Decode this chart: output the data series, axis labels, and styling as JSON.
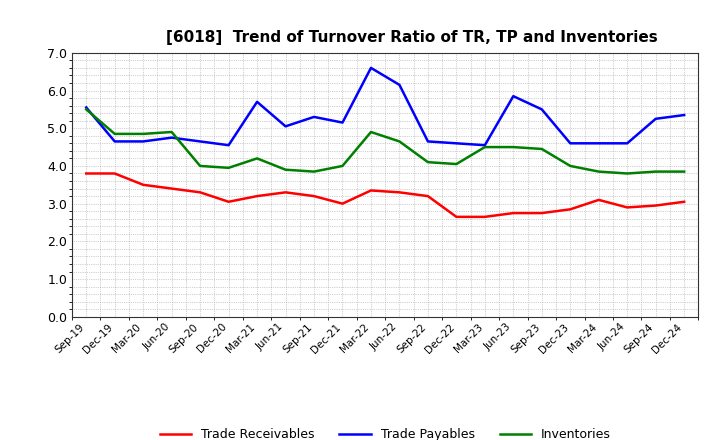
{
  "title": "[6018]  Trend of Turnover Ratio of TR, TP and Inventories",
  "x_labels": [
    "Sep-19",
    "Dec-19",
    "Mar-20",
    "Jun-20",
    "Sep-20",
    "Dec-20",
    "Mar-21",
    "Jun-21",
    "Sep-21",
    "Dec-21",
    "Mar-22",
    "Jun-22",
    "Sep-22",
    "Dec-22",
    "Mar-23",
    "Jun-23",
    "Sep-23",
    "Dec-23",
    "Mar-24",
    "Jun-24",
    "Sep-24",
    "Dec-24"
  ],
  "trade_receivables": [
    3.8,
    3.8,
    3.5,
    3.4,
    3.3,
    3.05,
    3.2,
    3.3,
    3.2,
    3.0,
    3.35,
    3.3,
    3.2,
    2.65,
    2.65,
    2.75,
    2.75,
    2.85,
    3.1,
    2.9,
    2.95,
    3.05
  ],
  "trade_payables": [
    5.55,
    4.65,
    4.65,
    4.75,
    4.65,
    4.55,
    5.7,
    5.05,
    5.3,
    5.15,
    6.6,
    6.15,
    4.65,
    4.6,
    4.55,
    5.85,
    5.5,
    4.6,
    4.6,
    4.6,
    5.25,
    5.35
  ],
  "inventories": [
    5.5,
    4.85,
    4.85,
    4.9,
    4.0,
    3.95,
    4.2,
    3.9,
    3.85,
    4.0,
    4.9,
    4.65,
    4.1,
    4.05,
    4.5,
    4.5,
    4.45,
    4.0,
    3.85,
    3.8,
    3.85,
    3.85
  ],
  "ylim": [
    0.0,
    7.0
  ],
  "yticks": [
    0.0,
    1.0,
    2.0,
    3.0,
    4.0,
    5.0,
    6.0,
    7.0
  ],
  "line_colors": {
    "trade_receivables": "#ff0000",
    "trade_payables": "#0000ff",
    "inventories": "#008000"
  },
  "legend_labels": [
    "Trade Receivables",
    "Trade Payables",
    "Inventories"
  ],
  "background_color": "#ffffff",
  "grid_color": "#999999",
  "title_fontsize": 11,
  "linewidth": 1.8,
  "xlabel_fontsize": 7.5,
  "ylabel_fontsize": 9
}
